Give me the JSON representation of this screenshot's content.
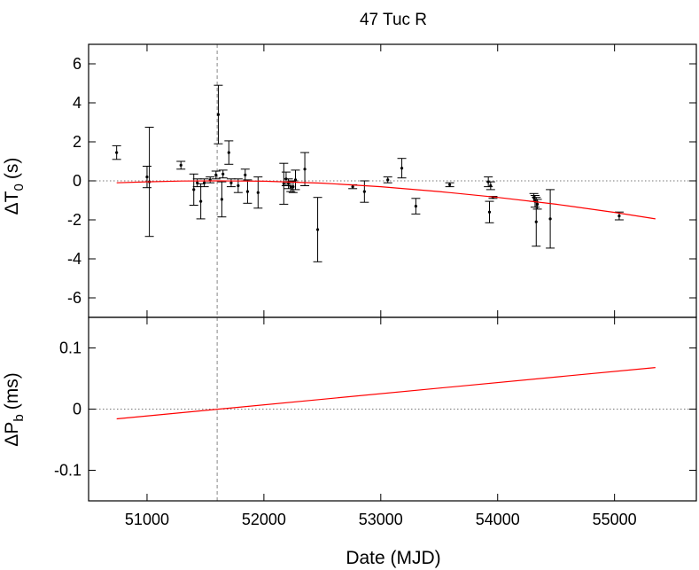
{
  "chart_data": {
    "title": "47 Tuc R",
    "xlabel": "Date (MJD)",
    "xlim": [
      50500,
      55700
    ],
    "x_ticks": [
      51000,
      52000,
      53000,
      54000,
      55000
    ],
    "x_tick_labels": [
      "51000",
      "52000",
      "53000",
      "54000",
      "55000"
    ],
    "reference_epoch_line": 51600,
    "panels": [
      {
        "type": "scatter",
        "ylabel_main": "ΔT",
        "ylabel_sub": "0",
        "ylabel_unit": "(s)",
        "ylim": [
          -7,
          7
        ],
        "y_ticks": [
          -6,
          -4,
          -2,
          0,
          2,
          4,
          6
        ],
        "y_tick_labels": [
          "-6",
          "-4",
          "-2",
          "0",
          "2",
          "4",
          "6"
        ],
        "zero_line": true,
        "series": [
          {
            "kind": "points_with_errorbars",
            "color": "#000000",
            "points": [
              {
                "x": 50740,
                "y": 1.45,
                "err": 0.35
              },
              {
                "x": 51000,
                "y": 0.2,
                "err": 0.55
              },
              {
                "x": 51020,
                "y": -0.05,
                "err": 2.8
              },
              {
                "x": 51290,
                "y": 0.8,
                "err": 0.2
              },
              {
                "x": 51400,
                "y": -0.45,
                "err": 0.8
              },
              {
                "x": 51430,
                "y": -0.1,
                "err": 0.2
              },
              {
                "x": 51460,
                "y": -1.05,
                "err": 0.9
              },
              {
                "x": 51490,
                "y": -0.1,
                "err": 0.2
              },
              {
                "x": 51540,
                "y": 0.05,
                "err": 0.15
              },
              {
                "x": 51590,
                "y": 0.3,
                "err": 0.2
              },
              {
                "x": 51610,
                "y": 3.4,
                "err": 1.5
              },
              {
                "x": 51640,
                "y": -0.95,
                "err": 0.9
              },
              {
                "x": 51650,
                "y": 0.35,
                "err": 0.2
              },
              {
                "x": 51700,
                "y": 1.45,
                "err": 0.6
              },
              {
                "x": 51720,
                "y": -0.1,
                "err": 0.2
              },
              {
                "x": 51780,
                "y": -0.25,
                "err": 0.35
              },
              {
                "x": 51840,
                "y": 0.3,
                "err": 0.3
              },
              {
                "x": 51860,
                "y": -0.55,
                "err": 0.6
              },
              {
                "x": 51950,
                "y": -0.6,
                "err": 0.8
              },
              {
                "x": 52170,
                "y": -0.15,
                "err": 1.05
              },
              {
                "x": 52190,
                "y": 0.1,
                "err": 0.35
              },
              {
                "x": 52210,
                "y": -0.15,
                "err": 0.25
              },
              {
                "x": 52230,
                "y": -0.3,
                "err": 0.25
              },
              {
                "x": 52250,
                "y": -0.3,
                "err": 0.3
              },
              {
                "x": 52270,
                "y": 0.05,
                "err": 0.5
              },
              {
                "x": 52350,
                "y": 0.6,
                "err": 0.85
              },
              {
                "x": 52460,
                "y": -2.5,
                "err": 1.65
              },
              {
                "x": 52760,
                "y": -0.3,
                "err": 0.1
              },
              {
                "x": 52860,
                "y": -0.55,
                "err": 0.55
              },
              {
                "x": 53060,
                "y": 0.05,
                "err": 0.15
              },
              {
                "x": 53180,
                "y": 0.65,
                "err": 0.5
              },
              {
                "x": 53300,
                "y": -1.3,
                "err": 0.4
              },
              {
                "x": 53590,
                "y": -0.2,
                "err": 0.1
              },
              {
                "x": 53920,
                "y": -0.05,
                "err": 0.25
              },
              {
                "x": 53930,
                "y": -1.6,
                "err": 0.55
              },
              {
                "x": 53940,
                "y": -0.25,
                "err": 0.2
              },
              {
                "x": 53960,
                "y": -0.85,
                "err": 0.05
              },
              {
                "x": 54310,
                "y": -0.85,
                "err": 0.2
              },
              {
                "x": 54320,
                "y": -1.05,
                "err": 0.3
              },
              {
                "x": 54330,
                "y": -2.1,
                "err": 1.25
              },
              {
                "x": 54340,
                "y": -1.2,
                "err": 0.25
              },
              {
                "x": 54450,
                "y": -1.95,
                "err": 1.5
              },
              {
                "x": 55040,
                "y": -1.8,
                "err": 0.2
              }
            ]
          },
          {
            "kind": "fit_curve",
            "color": "#ff0000",
            "x": [
              50740,
              51000,
              51300,
              51600,
              52000,
              52500,
              53000,
              53500,
              54000,
              54500,
              55000,
              55350
            ],
            "y": [
              -0.1,
              -0.05,
              -0.01,
              0.0,
              -0.02,
              -0.12,
              -0.3,
              -0.55,
              -0.85,
              -1.2,
              -1.62,
              -1.95
            ]
          }
        ]
      },
      {
        "type": "line",
        "ylabel_main": "ΔP",
        "ylabel_sub": "b",
        "ylabel_unit": "(ms)",
        "ylim": [
          -0.15,
          0.15
        ],
        "y_ticks": [
          -0.1,
          0,
          0.1
        ],
        "y_tick_labels": [
          "-0.1",
          "0",
          "0.1"
        ],
        "zero_line": true,
        "series": [
          {
            "kind": "fit_line",
            "color": "#ff0000",
            "x": [
              50740,
              55350
            ],
            "y": [
              -0.016,
              0.068
            ]
          }
        ]
      }
    ]
  }
}
